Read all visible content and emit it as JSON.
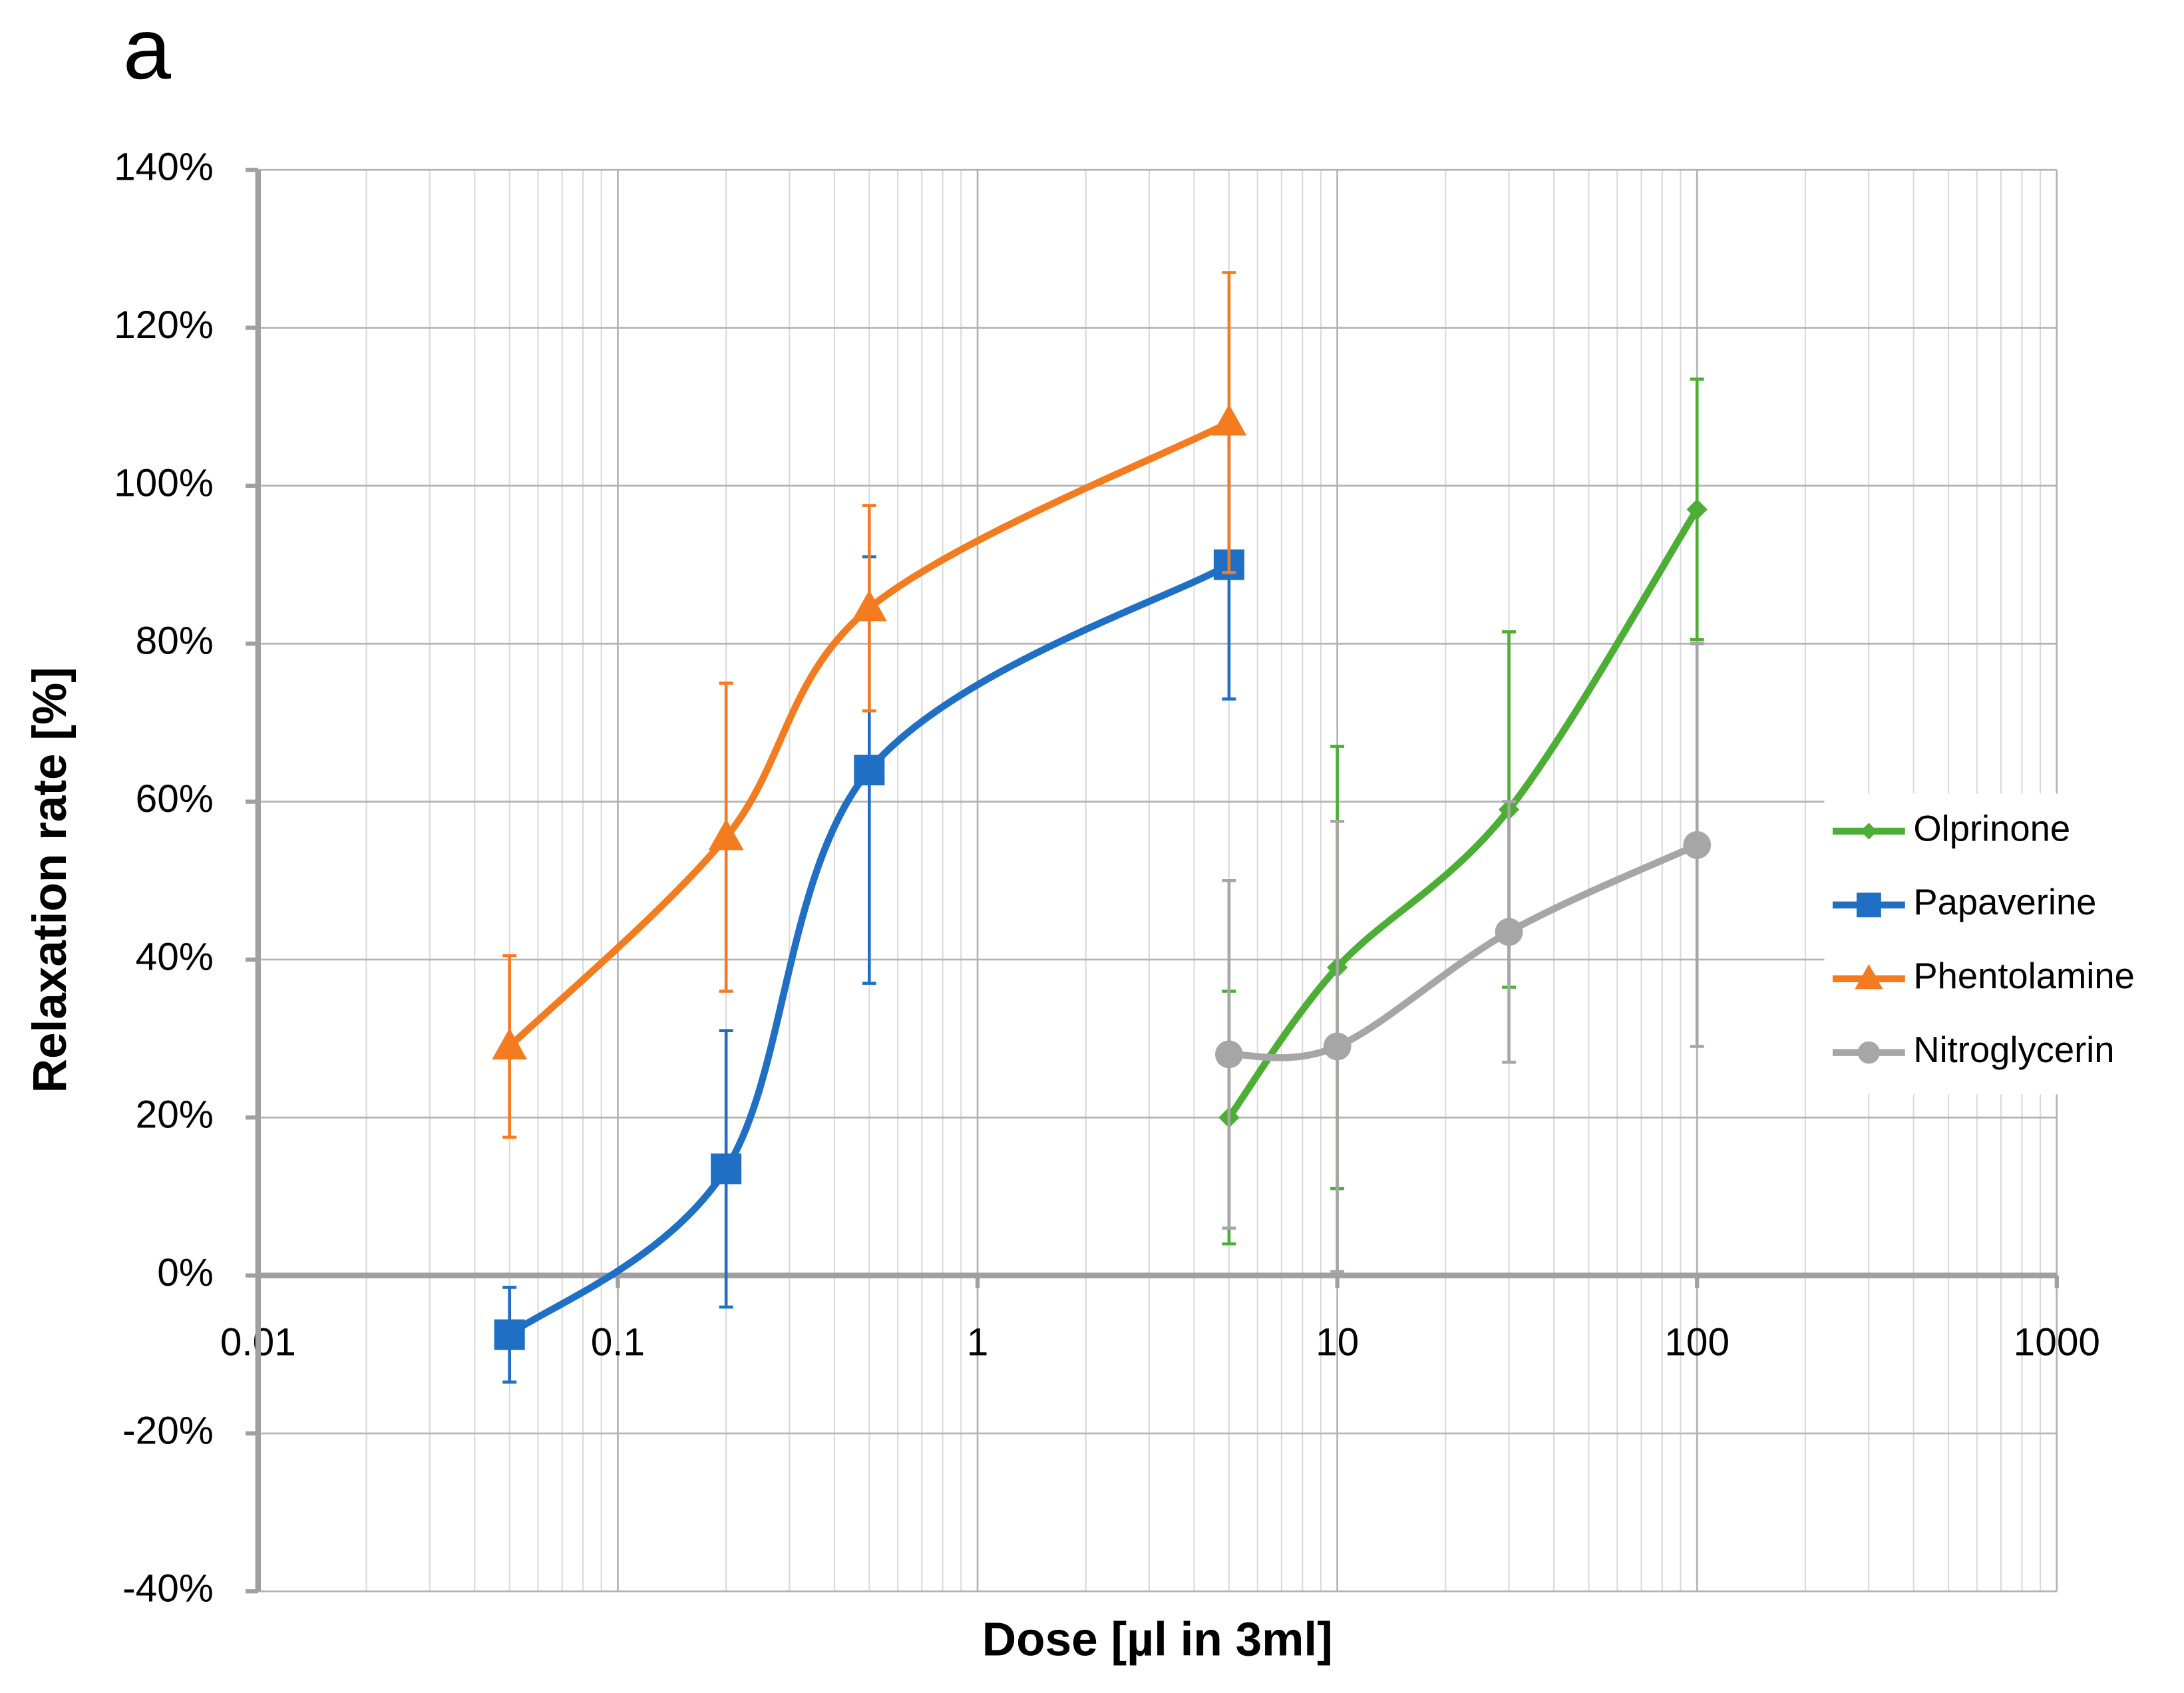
{
  "chart_data": {
    "type": "line",
    "panel_label": "a",
    "x_label": "Dose [µl in 3ml]",
    "y_label": "Relaxation rate [%]",
    "x_log": true,
    "grid": true,
    "minor_grid": true,
    "smooth": true,
    "legend": "right",
    "xlim": [
      0.01,
      1000
    ],
    "xticks": [
      0.01,
      0.1,
      1,
      10,
      100,
      1000
    ],
    "ylim": [
      -40,
      140
    ],
    "yticks": [
      {
        "value": -40,
        "label": "-40%"
      },
      {
        "value": -20,
        "label": "-20%"
      },
      {
        "value": 0,
        "label": "0%"
      },
      {
        "value": 20,
        "label": "20%"
      },
      {
        "value": 40,
        "label": "40%"
      },
      {
        "value": 60,
        "label": "60%"
      },
      {
        "value": 80,
        "label": "80%"
      },
      {
        "value": 100,
        "label": "100%"
      },
      {
        "value": 120,
        "label": "120%"
      },
      {
        "value": 140,
        "label": "140%"
      }
    ],
    "series": [
      {
        "name": "Olprinone",
        "color": "#4cae34",
        "marker": "diamond",
        "x": [
          5,
          10,
          30,
          100
        ],
        "values": [
          20,
          39,
          59,
          97
        ],
        "errors": [
          16,
          28,
          22.5,
          16.5
        ]
      },
      {
        "name": "Papaverine",
        "color": "#1f6fc5",
        "marker": "square",
        "x": [
          0.05,
          0.2,
          0.5,
          5
        ],
        "values": [
          -7.5,
          13.5,
          64,
          90
        ],
        "errors": [
          6,
          17.5,
          27,
          17
        ]
      },
      {
        "name": "Phentolamine",
        "color": "#f47c20",
        "marker": "triangle",
        "x": [
          0.05,
          0.2,
          0.5,
          5
        ],
        "values": [
          29,
          55.5,
          84.5,
          108
        ],
        "errors": [
          11.5,
          19.5,
          13,
          19
        ]
      },
      {
        "name": "Nitroglycerin",
        "color": "#a6a6a6",
        "marker": "circle",
        "x": [
          5,
          10,
          30,
          100
        ],
        "values": [
          28,
          29,
          43.5,
          54.5
        ],
        "errors": [
          22,
          28.5,
          16.5,
          25.5
        ]
      }
    ]
  }
}
